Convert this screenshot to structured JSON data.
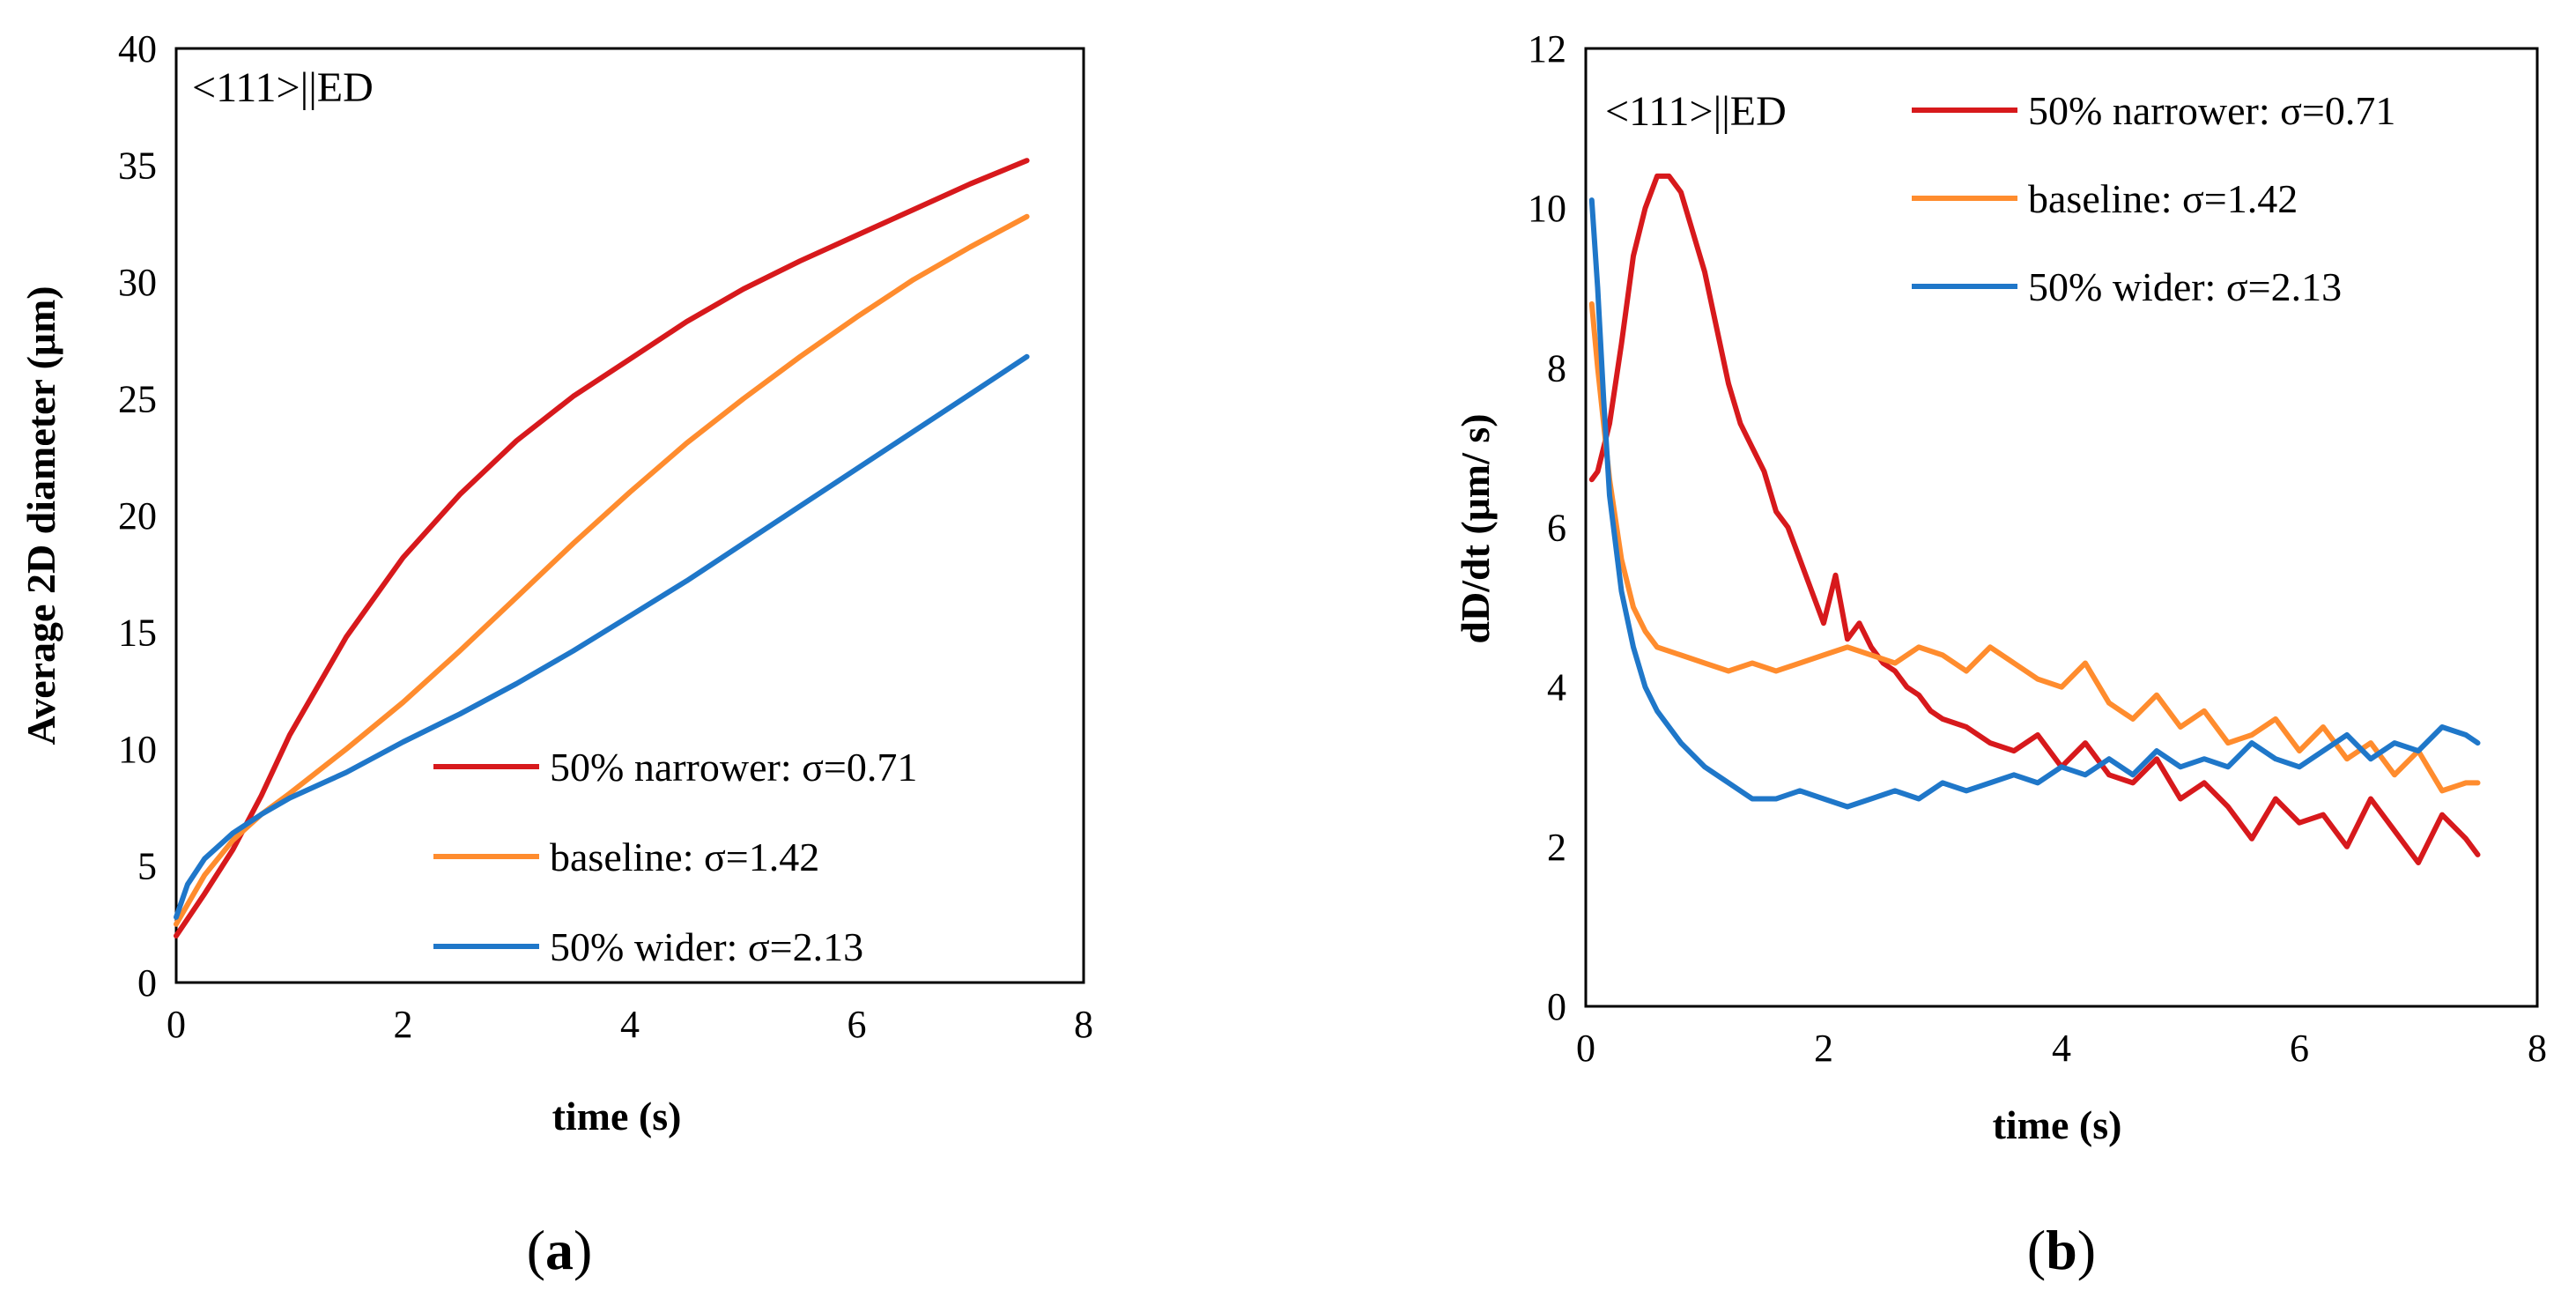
{
  "chart_data": [
    {
      "type": "line",
      "panel_label": "a",
      "caption_open": "(",
      "caption_close": ")",
      "annotation": "<111>||ED",
      "xlabel": "time (s)",
      "ylabel": "Average 2D diameter (μm)",
      "xlim": [
        0,
        8
      ],
      "ylim": [
        0,
        40
      ],
      "xticks": [
        "0",
        "2",
        "4",
        "6",
        "8"
      ],
      "yticks": [
        "0",
        "5",
        "10",
        "15",
        "20",
        "25",
        "30",
        "35",
        "40"
      ],
      "legend_position": "bottom-right",
      "series": [
        {
          "name": "50% narrower: σ=0.71",
          "color": "#d7191c",
          "x": [
            0,
            0.25,
            0.5,
            0.75,
            1.0,
            1.5,
            2.0,
            2.5,
            3.0,
            3.5,
            4.0,
            4.5,
            5.0,
            5.5,
            6.0,
            6.5,
            7.0,
            7.5
          ],
          "y": [
            2.0,
            3.8,
            5.7,
            8.0,
            10.6,
            14.8,
            18.2,
            20.9,
            23.2,
            25.1,
            26.7,
            28.3,
            29.7,
            30.9,
            32.0,
            33.1,
            34.2,
            35.2
          ]
        },
        {
          "name": "baseline: σ=1.42",
          "color": "#ff8c2e",
          "x": [
            0,
            0.25,
            0.5,
            0.75,
            1.0,
            1.5,
            2.0,
            2.5,
            3.0,
            3.5,
            4.0,
            4.5,
            5.0,
            5.5,
            6.0,
            6.5,
            7.0,
            7.5
          ],
          "y": [
            2.5,
            4.6,
            6.1,
            7.2,
            8.1,
            10.0,
            12.0,
            14.2,
            16.5,
            18.8,
            21.0,
            23.1,
            25.0,
            26.8,
            28.5,
            30.1,
            31.5,
            32.8
          ]
        },
        {
          "name": "50% wider: σ=2.13",
          "color": "#1f77c9",
          "x": [
            0,
            0.1,
            0.25,
            0.5,
            0.75,
            1.0,
            1.5,
            2.0,
            2.5,
            3.0,
            3.5,
            4.0,
            4.5,
            5.0,
            5.5,
            6.0,
            6.5,
            7.0,
            7.5
          ],
          "y": [
            2.8,
            4.2,
            5.3,
            6.4,
            7.2,
            7.9,
            9.0,
            10.3,
            11.5,
            12.8,
            14.2,
            15.7,
            17.2,
            18.8,
            20.4,
            22.0,
            23.6,
            25.2,
            26.8
          ]
        }
      ]
    },
    {
      "type": "line",
      "panel_label": "b",
      "caption_open": "(",
      "caption_close": ")",
      "annotation": "<111>||ED",
      "xlabel": "time (s)",
      "ylabel": "dD/dt (μm/ s)",
      "xlim": [
        0,
        8
      ],
      "ylim": [
        0,
        12
      ],
      "xticks": [
        "0",
        "2",
        "4",
        "6",
        "8"
      ],
      "yticks": [
        "0",
        "2",
        "4",
        "6",
        "8",
        "10",
        "12"
      ],
      "legend_position": "top-right",
      "series": [
        {
          "name": "50% narrower: σ=0.71",
          "color": "#d7191c",
          "x": [
            0.05,
            0.1,
            0.2,
            0.3,
            0.4,
            0.5,
            0.6,
            0.7,
            0.8,
            0.9,
            1.0,
            1.1,
            1.2,
            1.3,
            1.4,
            1.5,
            1.6,
            1.7,
            1.8,
            1.9,
            2.0,
            2.1,
            2.2,
            2.3,
            2.4,
            2.5,
            2.6,
            2.7,
            2.8,
            2.9,
            3.0,
            3.2,
            3.4,
            3.6,
            3.8,
            4.0,
            4.2,
            4.4,
            4.6,
            4.8,
            5.0,
            5.2,
            5.4,
            5.6,
            5.8,
            6.0,
            6.2,
            6.4,
            6.6,
            6.8,
            7.0,
            7.2,
            7.4,
            7.5
          ],
          "y": [
            6.6,
            6.7,
            7.3,
            8.3,
            9.4,
            10.0,
            10.4,
            10.4,
            10.2,
            9.7,
            9.2,
            8.5,
            7.8,
            7.3,
            7.0,
            6.7,
            6.2,
            6.0,
            5.6,
            5.2,
            4.8,
            5.4,
            4.6,
            4.8,
            4.5,
            4.3,
            4.2,
            4.0,
            3.9,
            3.7,
            3.6,
            3.5,
            3.3,
            3.2,
            3.4,
            3.0,
            3.3,
            2.9,
            2.8,
            3.1,
            2.6,
            2.8,
            2.5,
            2.1,
            2.6,
            2.3,
            2.4,
            2.0,
            2.6,
            2.2,
            1.8,
            2.4,
            2.1,
            1.9
          ]
        },
        {
          "name": "baseline: σ=1.42",
          "color": "#ff8c2e",
          "x": [
            0.05,
            0.1,
            0.2,
            0.3,
            0.4,
            0.5,
            0.6,
            0.8,
            1.0,
            1.2,
            1.4,
            1.6,
            1.8,
            2.0,
            2.2,
            2.4,
            2.6,
            2.8,
            3.0,
            3.2,
            3.4,
            3.6,
            3.8,
            4.0,
            4.2,
            4.4,
            4.6,
            4.8,
            5.0,
            5.2,
            5.4,
            5.6,
            5.8,
            6.0,
            6.2,
            6.4,
            6.6,
            6.8,
            7.0,
            7.2,
            7.4,
            7.5
          ],
          "y": [
            8.8,
            8.0,
            6.6,
            5.6,
            5.0,
            4.7,
            4.5,
            4.4,
            4.3,
            4.2,
            4.3,
            4.2,
            4.3,
            4.4,
            4.5,
            4.4,
            4.3,
            4.5,
            4.4,
            4.2,
            4.5,
            4.3,
            4.1,
            4.0,
            4.3,
            3.8,
            3.6,
            3.9,
            3.5,
            3.7,
            3.3,
            3.4,
            3.6,
            3.2,
            3.5,
            3.1,
            3.3,
            2.9,
            3.2,
            2.7,
            2.8,
            2.8
          ]
        },
        {
          "name": "50% wider: σ=2.13",
          "color": "#1f77c9",
          "x": [
            0.05,
            0.1,
            0.15,
            0.2,
            0.3,
            0.4,
            0.5,
            0.6,
            0.8,
            1.0,
            1.2,
            1.4,
            1.6,
            1.8,
            2.0,
            2.2,
            2.4,
            2.6,
            2.8,
            3.0,
            3.2,
            3.4,
            3.6,
            3.8,
            4.0,
            4.2,
            4.4,
            4.6,
            4.8,
            5.0,
            5.2,
            5.4,
            5.6,
            5.8,
            6.0,
            6.2,
            6.4,
            6.6,
            6.8,
            7.0,
            7.2,
            7.4,
            7.5
          ],
          "y": [
            10.1,
            9.0,
            7.6,
            6.4,
            5.2,
            4.5,
            4.0,
            3.7,
            3.3,
            3.0,
            2.8,
            2.6,
            2.6,
            2.7,
            2.6,
            2.5,
            2.6,
            2.7,
            2.6,
            2.8,
            2.7,
            2.8,
            2.9,
            2.8,
            3.0,
            2.9,
            3.1,
            2.9,
            3.2,
            3.0,
            3.1,
            3.0,
            3.3,
            3.1,
            3.0,
            3.2,
            3.4,
            3.1,
            3.3,
            3.2,
            3.5,
            3.4,
            3.3
          ]
        }
      ]
    }
  ]
}
